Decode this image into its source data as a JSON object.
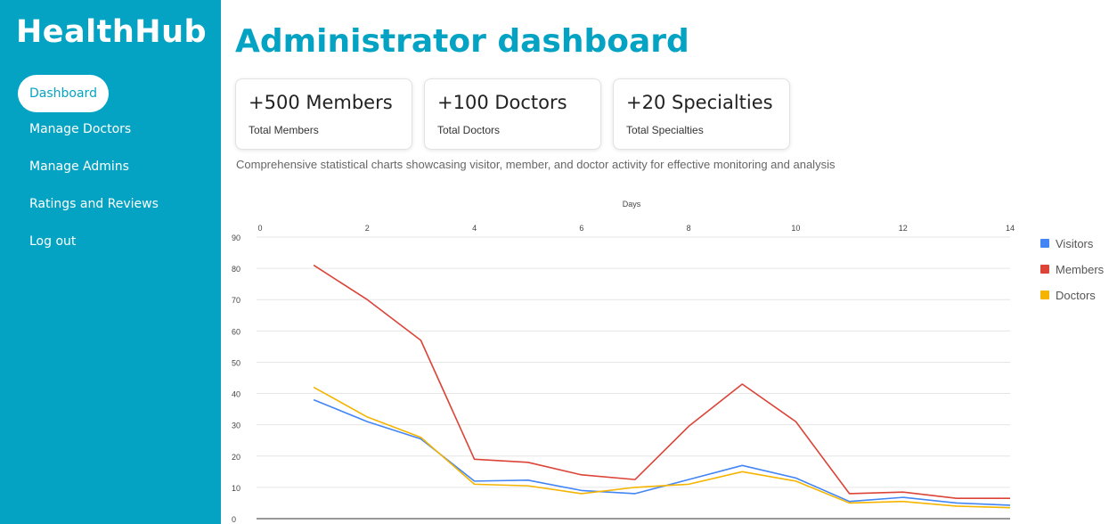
{
  "app": {
    "name": "HealthHub"
  },
  "nav": {
    "items": [
      {
        "label": "Dashboard",
        "active": true
      },
      {
        "label": "Manage Doctors"
      },
      {
        "label": "Manage Admins"
      },
      {
        "label": "Ratings and Reviews"
      },
      {
        "label": "Log out"
      }
    ]
  },
  "page": {
    "title": "Administrator dashboard",
    "description": "Comprehensive statistical charts showcasing visitor, member, and doctor activity for effective monitoring and analysis"
  },
  "cards": [
    {
      "value": "+500 Members",
      "label": "Total Members"
    },
    {
      "value": "+100 Doctors",
      "label": "Total Doctors"
    },
    {
      "value": "+20 Specialties",
      "label": "Total Specialties"
    }
  ],
  "colors": {
    "accent": "#05a3c3"
  },
  "chart_data": {
    "type": "line",
    "xlabel": "Days",
    "ylabel": "",
    "xlim": [
      0,
      14
    ],
    "ylim": [
      0,
      90
    ],
    "xticks": [
      0,
      2,
      4,
      6,
      8,
      10,
      12,
      14
    ],
    "yticks": [
      0,
      10,
      20,
      30,
      40,
      50,
      60,
      70,
      80,
      90
    ],
    "x": [
      1,
      2,
      3,
      4,
      5,
      6,
      7,
      8,
      9,
      10,
      11,
      12,
      13,
      14
    ],
    "grid": true,
    "legend_position": "right",
    "series": [
      {
        "name": "Visitors",
        "color": "#4285f4",
        "values": [
          38,
          31,
          25.5,
          12,
          12.3,
          9,
          8,
          12.5,
          17,
          13,
          5.5,
          6.8,
          5,
          4.3
        ]
      },
      {
        "name": "Members",
        "color": "#db4437",
        "values": [
          81,
          70,
          57,
          19,
          18,
          14,
          12.5,
          29.5,
          43,
          31,
          8,
          8.5,
          6.5,
          6.5
        ]
      },
      {
        "name": "Doctors",
        "color": "#f4b400",
        "values": [
          42,
          32.5,
          26,
          11,
          10.5,
          8,
          10,
          11,
          15,
          12,
          5,
          5.5,
          4,
          3.5
        ]
      }
    ]
  }
}
